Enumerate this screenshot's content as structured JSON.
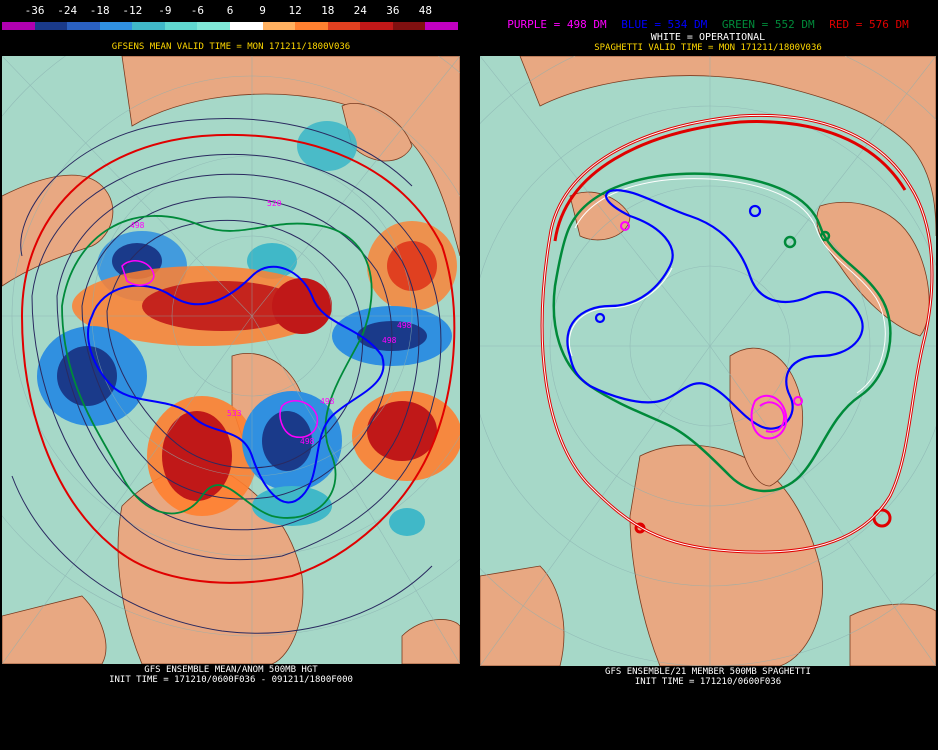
{
  "colors": {
    "ocean": "#a6d8c8",
    "land": "#e8a882",
    "purple": "#ff00ff",
    "blue": "#0000ff",
    "green": "#008a3a",
    "red": "#e00000",
    "white": "#ffffff"
  },
  "colorbar": {
    "ticks": [
      "-36",
      "-24",
      "-18",
      "-12",
      "-9",
      "-6",
      "6",
      "9",
      "12",
      "18",
      "24",
      "36",
      "48"
    ],
    "colors": [
      "#b000b0",
      "#1a3a8a",
      "#2a60c0",
      "#3090e0",
      "#40b8c8",
      "#60d8d0",
      "#80e8d8",
      "#ffffff",
      "#ffb060",
      "#ff8030",
      "#e04020",
      "#c01818",
      "#801010",
      "#c000c0"
    ]
  },
  "left_panel": {
    "title": "GFSENS MEAN VALID TIME = MON 171211/1800V036",
    "footer_line1": "GFS ENSEMBLE MEAN/ANOM 500MB HGT",
    "footer_line2": "INIT TIME = 171210/0600F036 - 091211/1800F000",
    "labels": [
      "498",
      "520",
      "498",
      "498",
      "533",
      "498",
      "498"
    ]
  },
  "right_panel": {
    "legend": {
      "purple": "PURPLE = 498 DM",
      "blue": "BLUE = 534 DM",
      "green": "GREEN = 552 DM",
      "red": "RED = 576 DM"
    },
    "title": "SPAGHETTI VALID TIME = MON 171211/1800V036",
    "subtitle": "WHITE = OPERATIONAL",
    "footer_line1": "GFS ENSEMBLE/21 MEMBER 500MB SPAGHETTI",
    "footer_line2": "INIT TIME = 171210/0600F036"
  }
}
